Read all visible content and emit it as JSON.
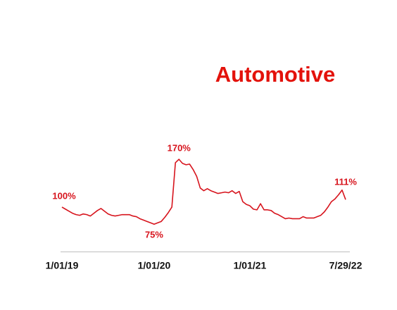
{
  "chart_data": {
    "type": "line",
    "title": "Automotive",
    "categories": [
      "1/01/19",
      null,
      null,
      null,
      null,
      null,
      null,
      null,
      null,
      null,
      null,
      null,
      null,
      null,
      null,
      null,
      null,
      null,
      null,
      null,
      null,
      null,
      null,
      null,
      null,
      null,
      "1/01/20",
      null,
      null,
      null,
      null,
      null,
      null,
      null,
      null,
      null,
      null,
      null,
      null,
      null,
      null,
      null,
      null,
      null,
      null,
      null,
      null,
      null,
      null,
      null,
      null,
      null,
      null,
      "1/01/21",
      null,
      null,
      null,
      null,
      null,
      null,
      null,
      null,
      null,
      null,
      null,
      null,
      null,
      null,
      null,
      null,
      null,
      null,
      null,
      null,
      null,
      null,
      null,
      null,
      null,
      null,
      "7/29/22"
    ],
    "series": [
      {
        "color": "#d7141d",
        "values": [
          100,
          97,
          94,
          91,
          89,
          88,
          90,
          89,
          87,
          91,
          95,
          98,
          94,
          90,
          88,
          87,
          88,
          89,
          89,
          89,
          87,
          86,
          83,
          81,
          79,
          77,
          75,
          77,
          79,
          85,
          92,
          100,
          165,
          170,
          164,
          162,
          163,
          155,
          145,
          128,
          124,
          127,
          124,
          122,
          120,
          121,
          122,
          121,
          124,
          120,
          123,
          108,
          104,
          102,
          97,
          96,
          105,
          96,
          96,
          95,
          91,
          89,
          86,
          83,
          84,
          83,
          83,
          83,
          86,
          84,
          84,
          84,
          86,
          88,
          93,
          100,
          108,
          112,
          118,
          125,
          111
        ],
        "value_labels": [
          "100%",
          null,
          null,
          null,
          null,
          null,
          null,
          null,
          null,
          null,
          null,
          null,
          null,
          null,
          null,
          null,
          null,
          null,
          null,
          null,
          null,
          null,
          null,
          null,
          null,
          null,
          "75%",
          null,
          null,
          null,
          null,
          null,
          null,
          "170%",
          null,
          null,
          null,
          null,
          null,
          null,
          null,
          null,
          null,
          null,
          null,
          null,
          null,
          null,
          null,
          null,
          null,
          null,
          null,
          null,
          null,
          null,
          null,
          null,
          null,
          null,
          null,
          null,
          null,
          null,
          null,
          null,
          null,
          null,
          null,
          null,
          null,
          null,
          null,
          null,
          null,
          null,
          null,
          null,
          null,
          null,
          "111%"
        ]
      }
    ],
    "ylim": [
      35,
      200
    ]
  }
}
